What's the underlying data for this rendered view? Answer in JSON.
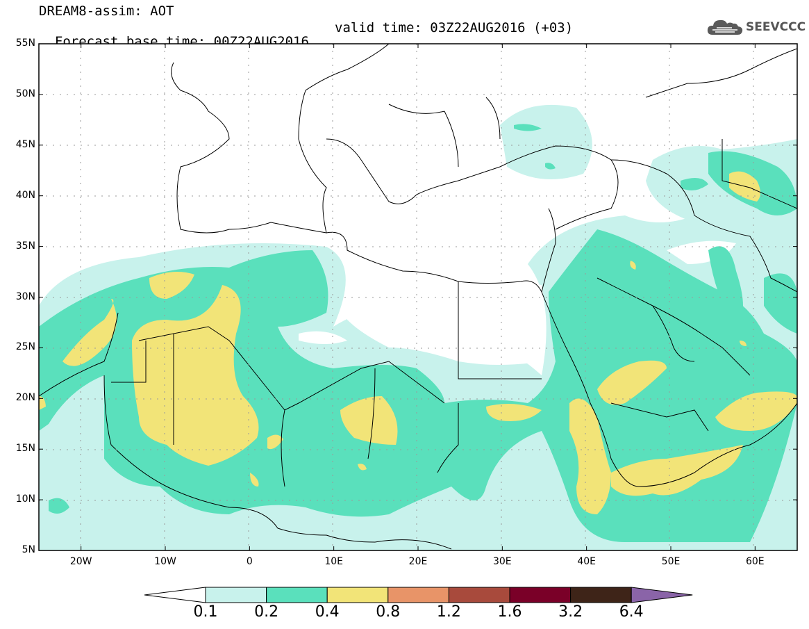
{
  "header": {
    "title": "DREAM8-assim: AOT",
    "base_time": "Forecast base time: 00Z22AUG2016",
    "valid_time": "valid time: 03Z22AUG2016 (+03)",
    "logo_text": "SEEVCCC"
  },
  "map": {
    "lat_labels": [
      "55N",
      "50N",
      "45N",
      "40N",
      "35N",
      "30N",
      "25N",
      "20N",
      "15N",
      "10N",
      "5N"
    ],
    "lon_labels": [
      "20W",
      "10W",
      "0",
      "10E",
      "20E",
      "30E",
      "40E",
      "50E",
      "60E"
    ],
    "lat_range": [
      5,
      55
    ],
    "lon_range": [
      -25,
      65
    ],
    "grid": true
  },
  "legend": {
    "labels": [
      "0.1",
      "0.2",
      "0.4",
      "0.8",
      "1.2",
      "1.6",
      "3.2",
      "6.4"
    ],
    "colors": [
      "#ffffff",
      "#c8f2ec",
      "#5ae0bc",
      "#f2e478",
      "#e89468",
      "#a84a3c",
      "#7a0028",
      "#3e2418",
      "#8a64a8"
    ]
  }
}
